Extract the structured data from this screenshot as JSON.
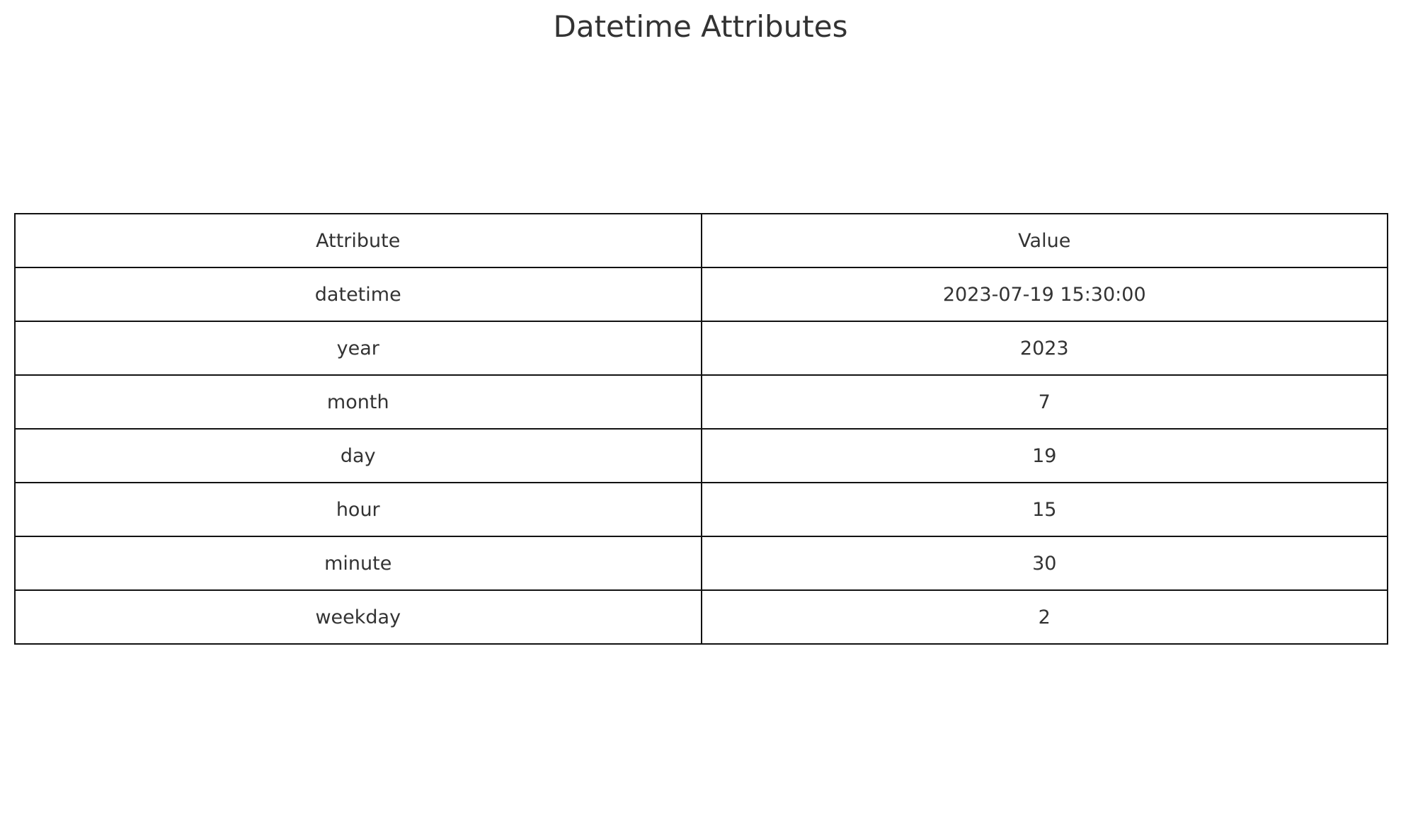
{
  "chart_data": {
    "type": "table",
    "title": "Datetime Attributes",
    "columns": [
      "Attribute",
      "Value"
    ],
    "rows": [
      [
        "datetime",
        "2023-07-19 15:30:00"
      ],
      [
        "year",
        "2023"
      ],
      [
        "month",
        "7"
      ],
      [
        "day",
        "19"
      ],
      [
        "hour",
        "15"
      ],
      [
        "minute",
        "30"
      ],
      [
        "weekday",
        "2"
      ]
    ]
  },
  "colors": {
    "text": "#333333",
    "border": "#111111",
    "background": "#ffffff"
  }
}
